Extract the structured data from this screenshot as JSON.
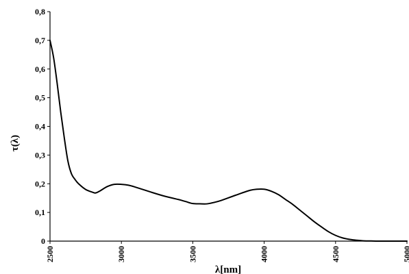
{
  "chart_data": {
    "type": "line",
    "title": "",
    "xlabel": "λ[nm]",
    "ylabel": "τ(λ)",
    "xlim": [
      2500,
      5000
    ],
    "ylim": [
      0,
      0.8
    ],
    "x_ticks": [
      2500,
      3000,
      3500,
      4000,
      4500,
      5000
    ],
    "x_tick_labels": [
      "2500",
      "3000",
      "3500",
      "4000",
      "4500",
      "5000"
    ],
    "y_ticks": [
      0,
      0.1,
      0.2,
      0.3,
      0.4,
      0.5,
      0.6,
      0.7,
      0.8
    ],
    "y_tick_labels": [
      "0",
      "0,1",
      "0,2",
      "0,3",
      "0,4",
      "0,5",
      "0,6",
      "0,7",
      "0,8"
    ],
    "grid": false,
    "legend": "none",
    "line_color": "#000000",
    "series": [
      {
        "x": [
          2500,
          2525,
          2550,
          2575,
          2600,
          2625,
          2650,
          2675,
          2700,
          2750,
          2800,
          2820,
          2850,
          2900,
          2950,
          3000,
          3050,
          3100,
          3200,
          3300,
          3400,
          3450,
          3500,
          3550,
          3600,
          3650,
          3700,
          3800,
          3900,
          3950,
          4000,
          4050,
          4100,
          4150,
          4200,
          4250,
          4300,
          4350,
          4400,
          4450,
          4500,
          4550,
          4600,
          4650,
          4700,
          4750,
          4800,
          4900,
          5000
        ],
        "y": [
          0.7,
          0.64,
          0.55,
          0.45,
          0.36,
          0.28,
          0.235,
          0.215,
          0.2,
          0.18,
          0.17,
          0.168,
          0.175,
          0.19,
          0.198,
          0.198,
          0.195,
          0.188,
          0.172,
          0.157,
          0.145,
          0.138,
          0.131,
          0.13,
          0.13,
          0.135,
          0.142,
          0.16,
          0.177,
          0.181,
          0.181,
          0.174,
          0.162,
          0.145,
          0.128,
          0.108,
          0.088,
          0.068,
          0.05,
          0.033,
          0.02,
          0.011,
          0.006,
          0.003,
          0.001,
          0.0005,
          0.0,
          0.0,
          0.0
        ]
      }
    ]
  }
}
